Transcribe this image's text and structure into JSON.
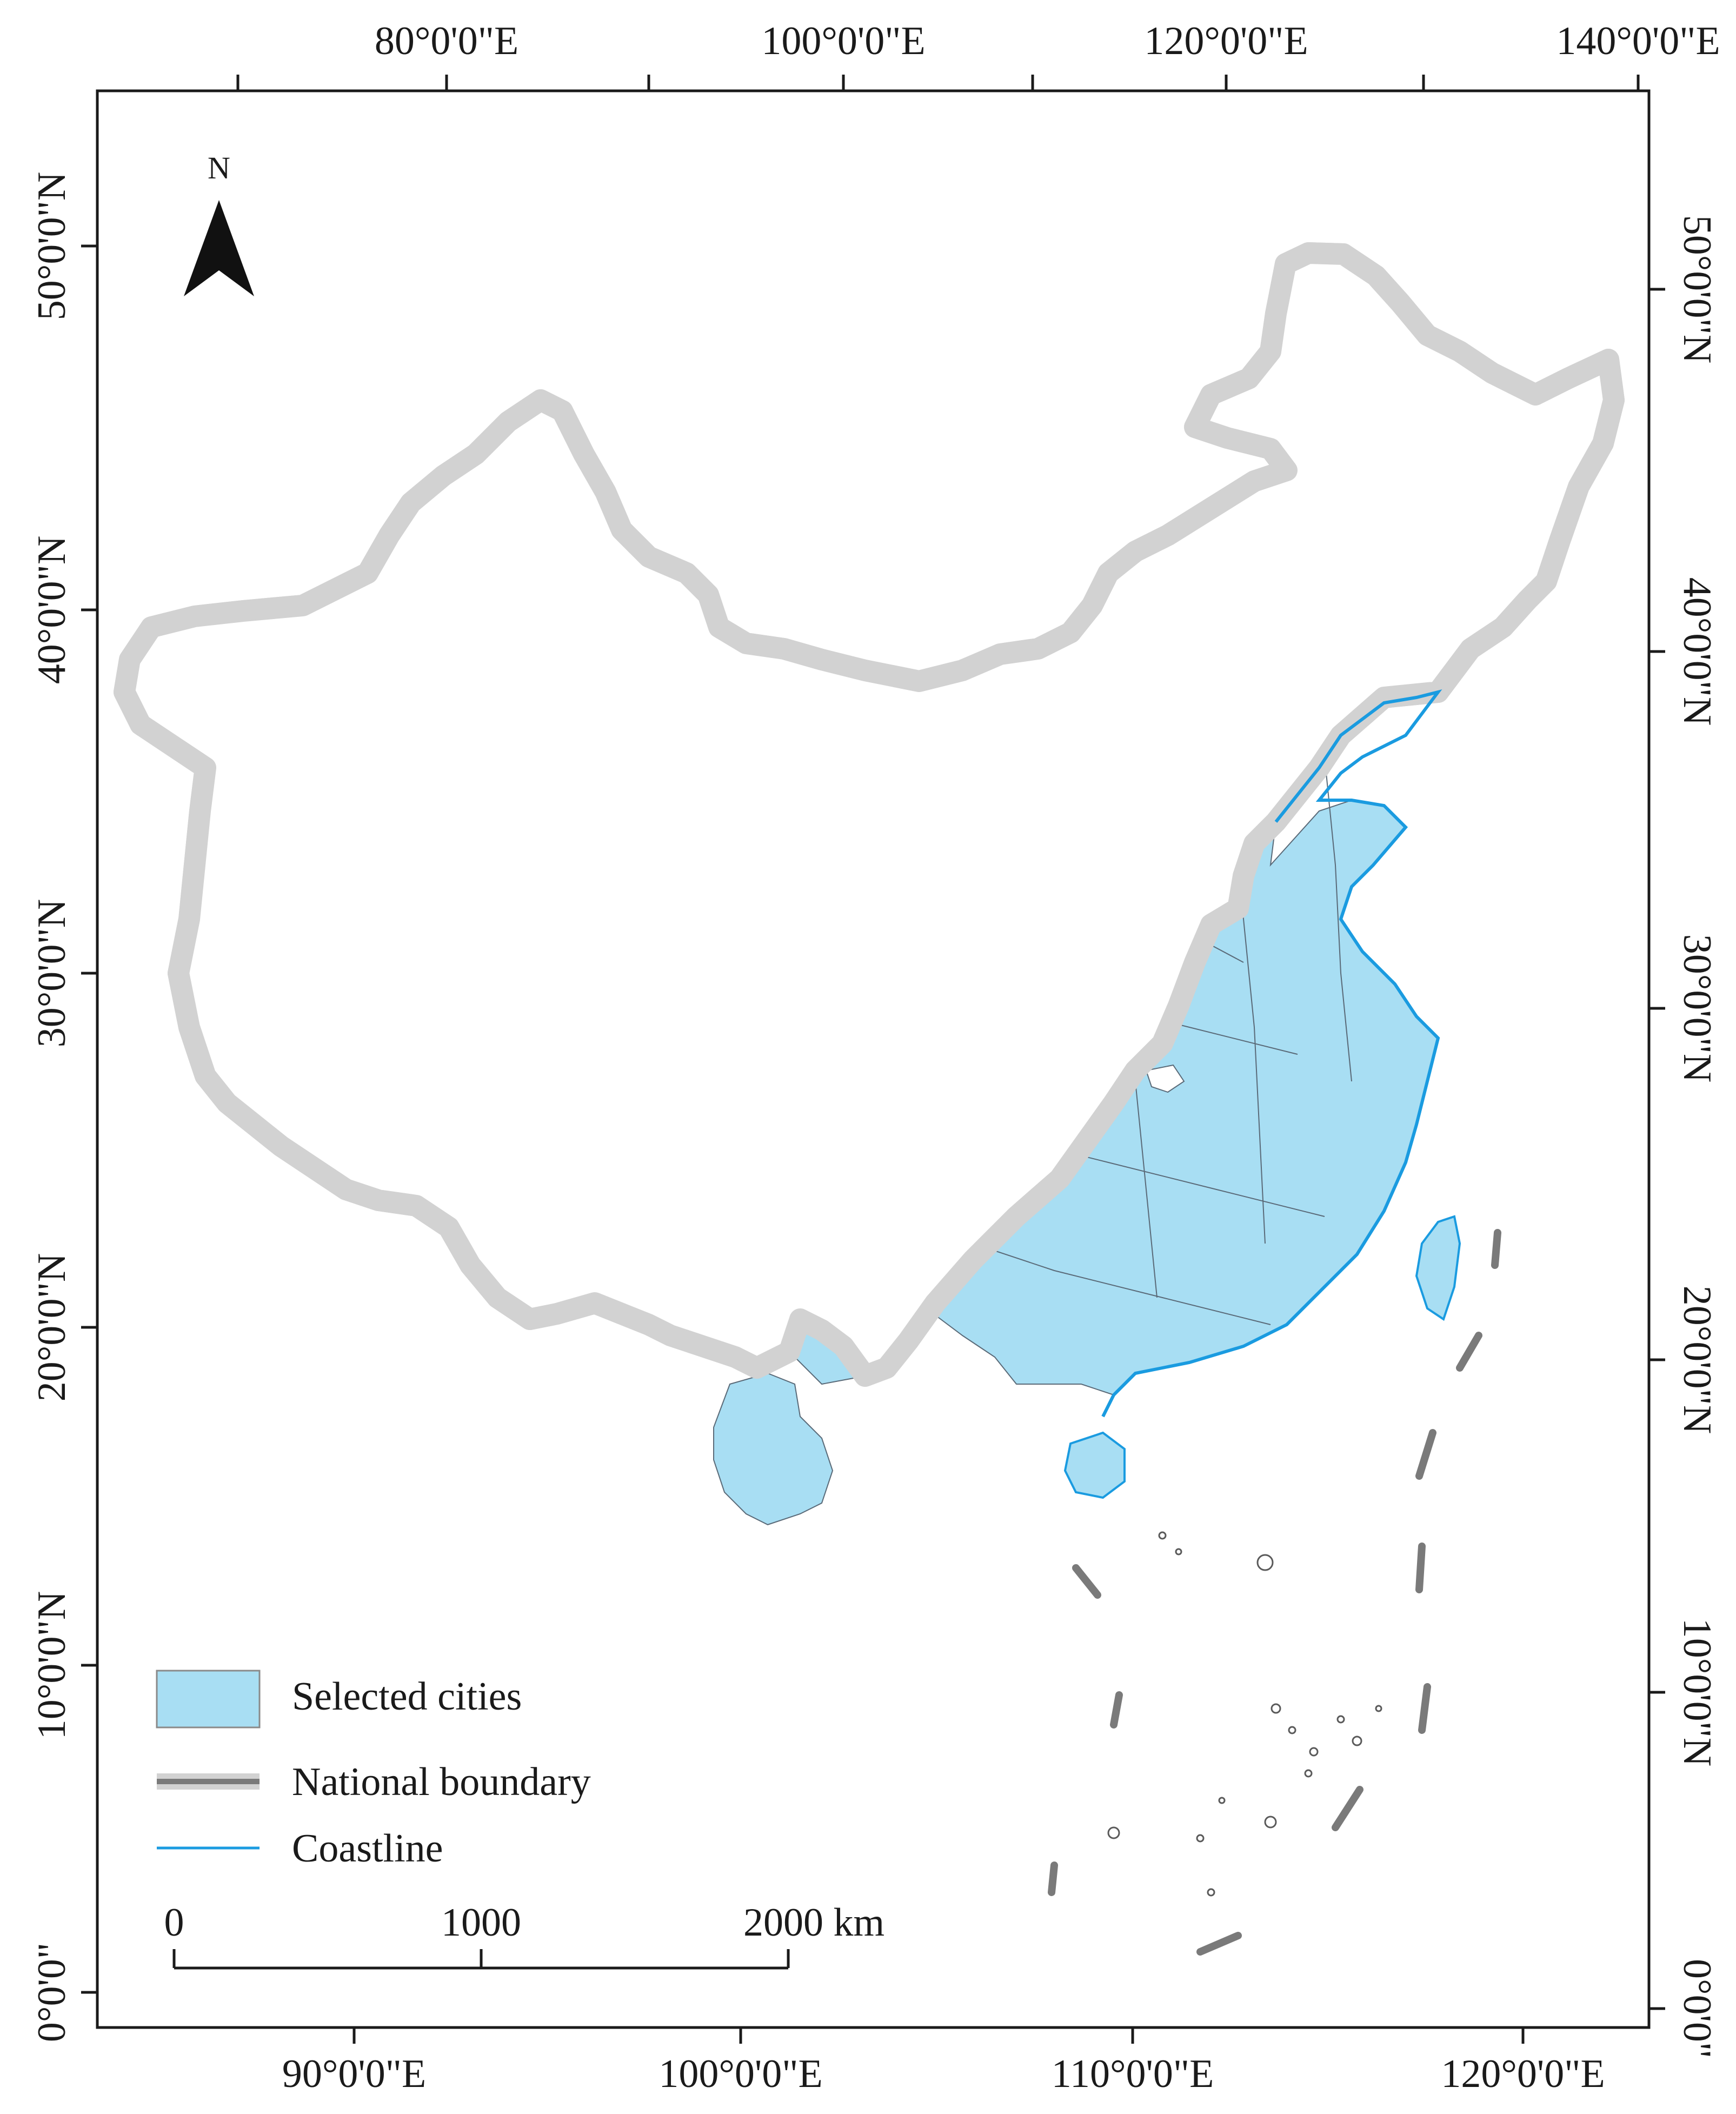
{
  "map": {
    "top_axis_labels": [
      "80°0'0\"E",
      "100°0'0\"E",
      "120°0'0\"E",
      "140°0'0\"E"
    ],
    "bottom_axis_labels": [
      "90°0'0\"E",
      "100°0'0\"E",
      "110°0'0\"E",
      "120°0'0\"E"
    ],
    "left_axis_labels": [
      "50°0'0\"N",
      "40°0'0\"N",
      "30°0'0\"N",
      "20°0'0\"N",
      "10°0'0\"N",
      "0°0'0\""
    ],
    "right_axis_labels": [
      "50°0'0\"N",
      "40°0'0\"N",
      "30°0'0\"N",
      "20°0'0\"N",
      "10°0'0\"N",
      "0°0'0\""
    ],
    "north_arrow": {
      "label": "N",
      "icon": "north-arrow-icon"
    },
    "legend": [
      {
        "label": "Selected cities",
        "symbol": "fill",
        "color": "#a8def3"
      },
      {
        "label": "National boundary",
        "symbol": "thick-gray-line",
        "color": "#7a7a7a"
      },
      {
        "label": "Coastline",
        "symbol": "blue-line",
        "color": "#1a9be0"
      }
    ],
    "scale_bar": {
      "ticks": [
        "0",
        "1000",
        "2000 km"
      ]
    },
    "colors": {
      "selected_cities": "#a8def3",
      "boundary": "#7a7a7a",
      "boundary_halo": "#d2d2d2",
      "coastline": "#1a9be0"
    }
  }
}
